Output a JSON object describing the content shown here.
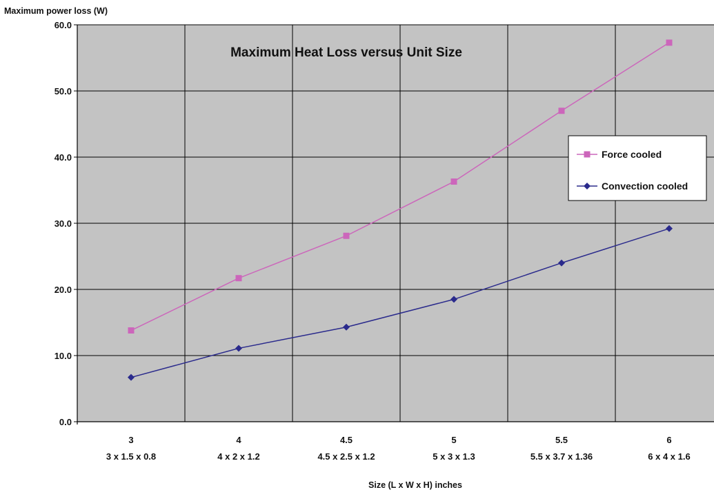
{
  "chart_data": {
    "type": "line",
    "title": "Maximum Heat Loss versus Unit Size",
    "ylabel": "Maximum power loss (W)",
    "xlabel": "Size (L x W x H) inches",
    "ylim": [
      0,
      60
    ],
    "yticks": [
      "0.0",
      "10.0",
      "20.0",
      "30.0",
      "40.0",
      "50.0",
      "60.0"
    ],
    "ytick_values": [
      0,
      10,
      20,
      30,
      40,
      50,
      60
    ],
    "grid": true,
    "legend_position": "right",
    "categories": [
      "3",
      "4",
      "4.5",
      "5",
      "5.5",
      "6"
    ],
    "category_sizes": [
      "3 x 1.5 x 0.8",
      "4 x 2 x 1.2",
      "4.5 x 2.5 x 1.2",
      "5 x 3 x 1.3",
      "5.5 x 3.7 x 1.36",
      "6 x 4 x 1.6"
    ],
    "series": [
      {
        "name": "Force cooled",
        "color": "#cc66bb",
        "marker": "square",
        "values": [
          13.8,
          21.7,
          28.1,
          36.3,
          47.0,
          57.3
        ]
      },
      {
        "name": "Convection cooled",
        "color": "#2a2a8c",
        "marker": "diamond",
        "values": [
          6.7,
          11.1,
          14.3,
          18.5,
          24.0,
          29.2
        ]
      }
    ]
  }
}
